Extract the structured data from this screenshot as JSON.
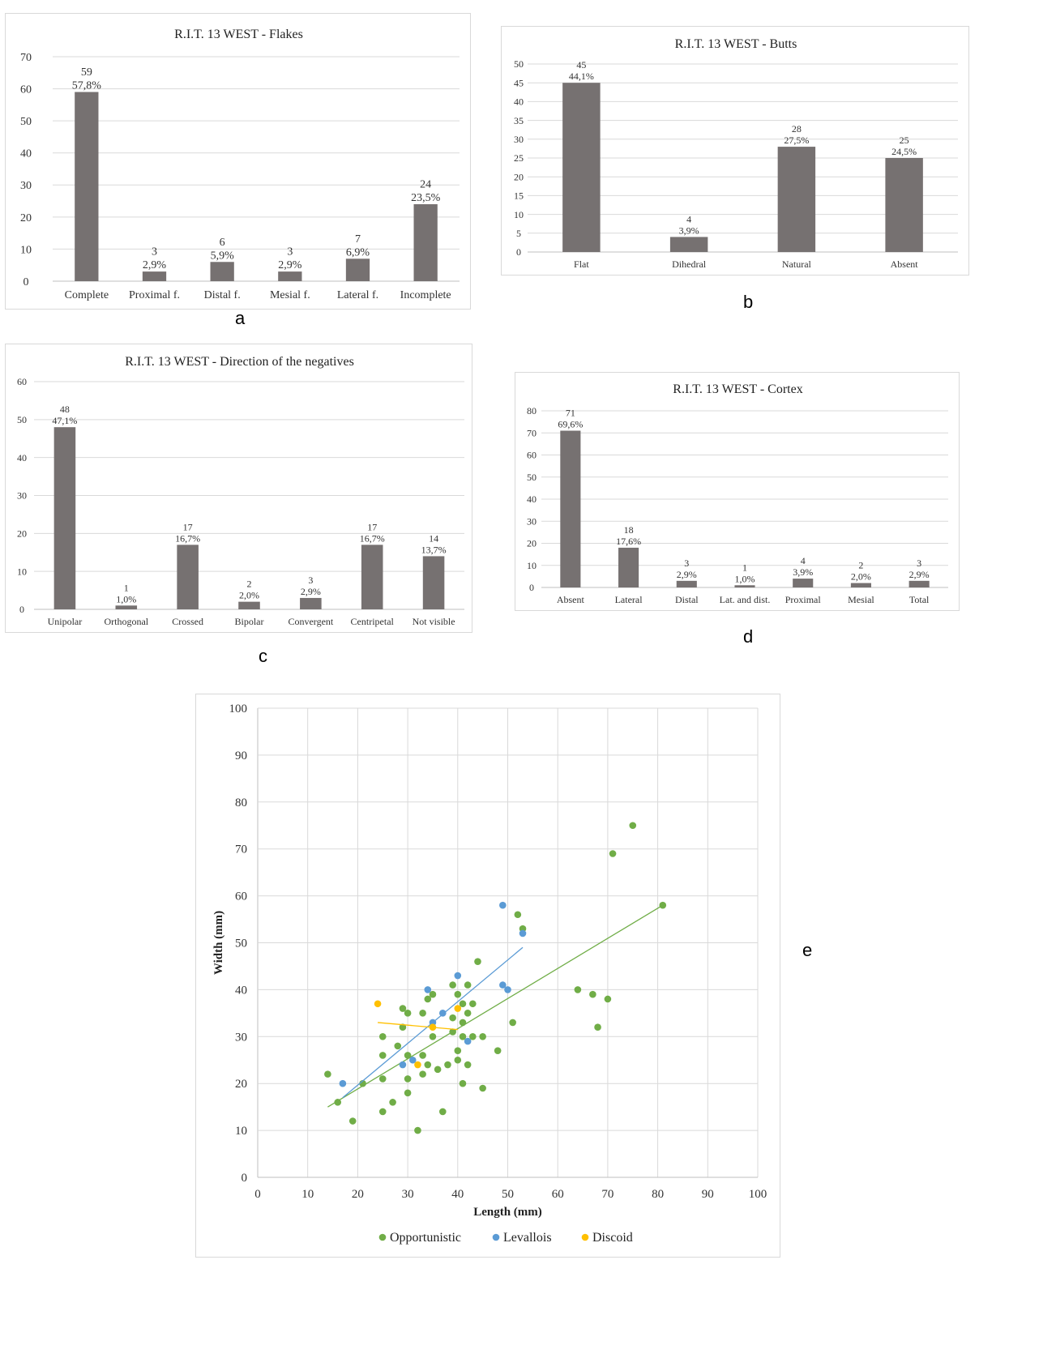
{
  "labels": {
    "a": "a",
    "b": "b",
    "c": "c",
    "d": "d",
    "e": "e"
  },
  "colors": {
    "bar": "#767171",
    "grid": "#d9d9d9",
    "opportunistic": "#70ad47",
    "levallois": "#5b9bd5",
    "discoid": "#ffc000"
  },
  "chart_data": [
    {
      "type": "bar",
      "title": "R.I.T. 13 WEST - Flakes",
      "categories": [
        "Complete",
        "Proximal f.",
        "Distal f.",
        "Mesial f.",
        "Lateral f.",
        "Incomplete"
      ],
      "values": [
        59,
        3,
        6,
        3,
        7,
        24
      ],
      "percent_labels": [
        "57,8%",
        "2,9%",
        "5,9%",
        "2,9%",
        "6,9%",
        "23,5%"
      ],
      "ylim": [
        0,
        70
      ],
      "ytick_step": 10,
      "grid": true
    },
    {
      "type": "bar",
      "title": "R.I.T. 13 WEST - Butts",
      "categories": [
        "Flat",
        "Dihedral",
        "Natural",
        "Absent"
      ],
      "values": [
        45,
        4,
        28,
        25
      ],
      "percent_labels": [
        "44,1%",
        "3,9%",
        "27,5%",
        "24,5%"
      ],
      "ylim": [
        0,
        50
      ],
      "ytick_step": 5,
      "grid": true
    },
    {
      "type": "bar",
      "title": "R.I.T. 13 WEST - Direction of the negatives",
      "categories": [
        "Unipolar",
        "Orthogonal",
        "Crossed",
        "Bipolar",
        "Convergent",
        "Centripetal",
        "Not visible"
      ],
      "values": [
        48,
        1,
        17,
        2,
        3,
        17,
        14
      ],
      "percent_labels": [
        "47,1%",
        "1,0%",
        "16,7%",
        "2,0%",
        "2,9%",
        "16,7%",
        "13,7%"
      ],
      "ylim": [
        0,
        60
      ],
      "ytick_step": 10,
      "grid": true
    },
    {
      "type": "bar",
      "title": "R.I.T. 13 WEST - Cortex",
      "categories": [
        "Absent",
        "Lateral",
        "Distal",
        "Lat. and dist.",
        "Proximal",
        "Mesial",
        "Total"
      ],
      "values": [
        71,
        18,
        3,
        1,
        4,
        2,
        3
      ],
      "percent_labels": [
        "69,6%",
        "17,6%",
        "2,9%",
        "1,0%",
        "3,9%",
        "2,0%",
        "2,9%"
      ],
      "ylim": [
        0,
        80
      ],
      "ytick_step": 10,
      "grid": true
    },
    {
      "type": "scatter",
      "xlabel": "Length (mm)",
      "ylabel": "Width (mm)",
      "xlim": [
        0,
        100
      ],
      "ylim": [
        0,
        100
      ],
      "tick_step": 10,
      "grid": true,
      "legend": "bottom",
      "series": [
        {
          "name": "Opportunistic",
          "points": [
            [
              14,
              22
            ],
            [
              16,
              16
            ],
            [
              19,
              12
            ],
            [
              21,
              20
            ],
            [
              25,
              30
            ],
            [
              25,
              26
            ],
            [
              25,
              21
            ],
            [
              25,
              14
            ],
            [
              27,
              16
            ],
            [
              28,
              28
            ],
            [
              29,
              36
            ],
            [
              29,
              32
            ],
            [
              30,
              35
            ],
            [
              30,
              26
            ],
            [
              30,
              21
            ],
            [
              30,
              18
            ],
            [
              32,
              10
            ],
            [
              33,
              35
            ],
            [
              33,
              26
            ],
            [
              33,
              22
            ],
            [
              34,
              38
            ],
            [
              34,
              24
            ],
            [
              35,
              39
            ],
            [
              35,
              30
            ],
            [
              36,
              23
            ],
            [
              37,
              14
            ],
            [
              38,
              24
            ],
            [
              39,
              41
            ],
            [
              39,
              34
            ],
            [
              39,
              31
            ],
            [
              40,
              39
            ],
            [
              40,
              27
            ],
            [
              40,
              25
            ],
            [
              41,
              37
            ],
            [
              41,
              33
            ],
            [
              41,
              30
            ],
            [
              41,
              20
            ],
            [
              42,
              41
            ],
            [
              42,
              35
            ],
            [
              42,
              24
            ],
            [
              43,
              37
            ],
            [
              43,
              30
            ],
            [
              44,
              46
            ],
            [
              45,
              30
            ],
            [
              45,
              19
            ],
            [
              48,
              27
            ],
            [
              51,
              33
            ],
            [
              52,
              56
            ],
            [
              53,
              53
            ],
            [
              64,
              40
            ],
            [
              67,
              39
            ],
            [
              68,
              32
            ],
            [
              70,
              38
            ],
            [
              71,
              69
            ],
            [
              75,
              75
            ],
            [
              81,
              58
            ]
          ],
          "trendline": [
            [
              14,
              15
            ],
            [
              81,
              58
            ]
          ]
        },
        {
          "name": "Levallois",
          "points": [
            [
              17,
              20
            ],
            [
              29,
              24
            ],
            [
              31,
              25
            ],
            [
              34,
              40
            ],
            [
              35,
              33
            ],
            [
              37,
              35
            ],
            [
              40,
              43
            ],
            [
              42,
              29
            ],
            [
              49,
              58
            ],
            [
              49,
              41
            ],
            [
              50,
              40
            ],
            [
              53,
              52
            ]
          ],
          "trendline": [
            [
              17,
              17
            ],
            [
              53,
              49
            ]
          ]
        },
        {
          "name": "Discoid",
          "points": [
            [
              24,
              37
            ],
            [
              32,
              24
            ],
            [
              35,
              32
            ],
            [
              40,
              36
            ]
          ],
          "trendline": [
            [
              24,
              33
            ],
            [
              40,
              31.5
            ]
          ]
        }
      ]
    }
  ]
}
